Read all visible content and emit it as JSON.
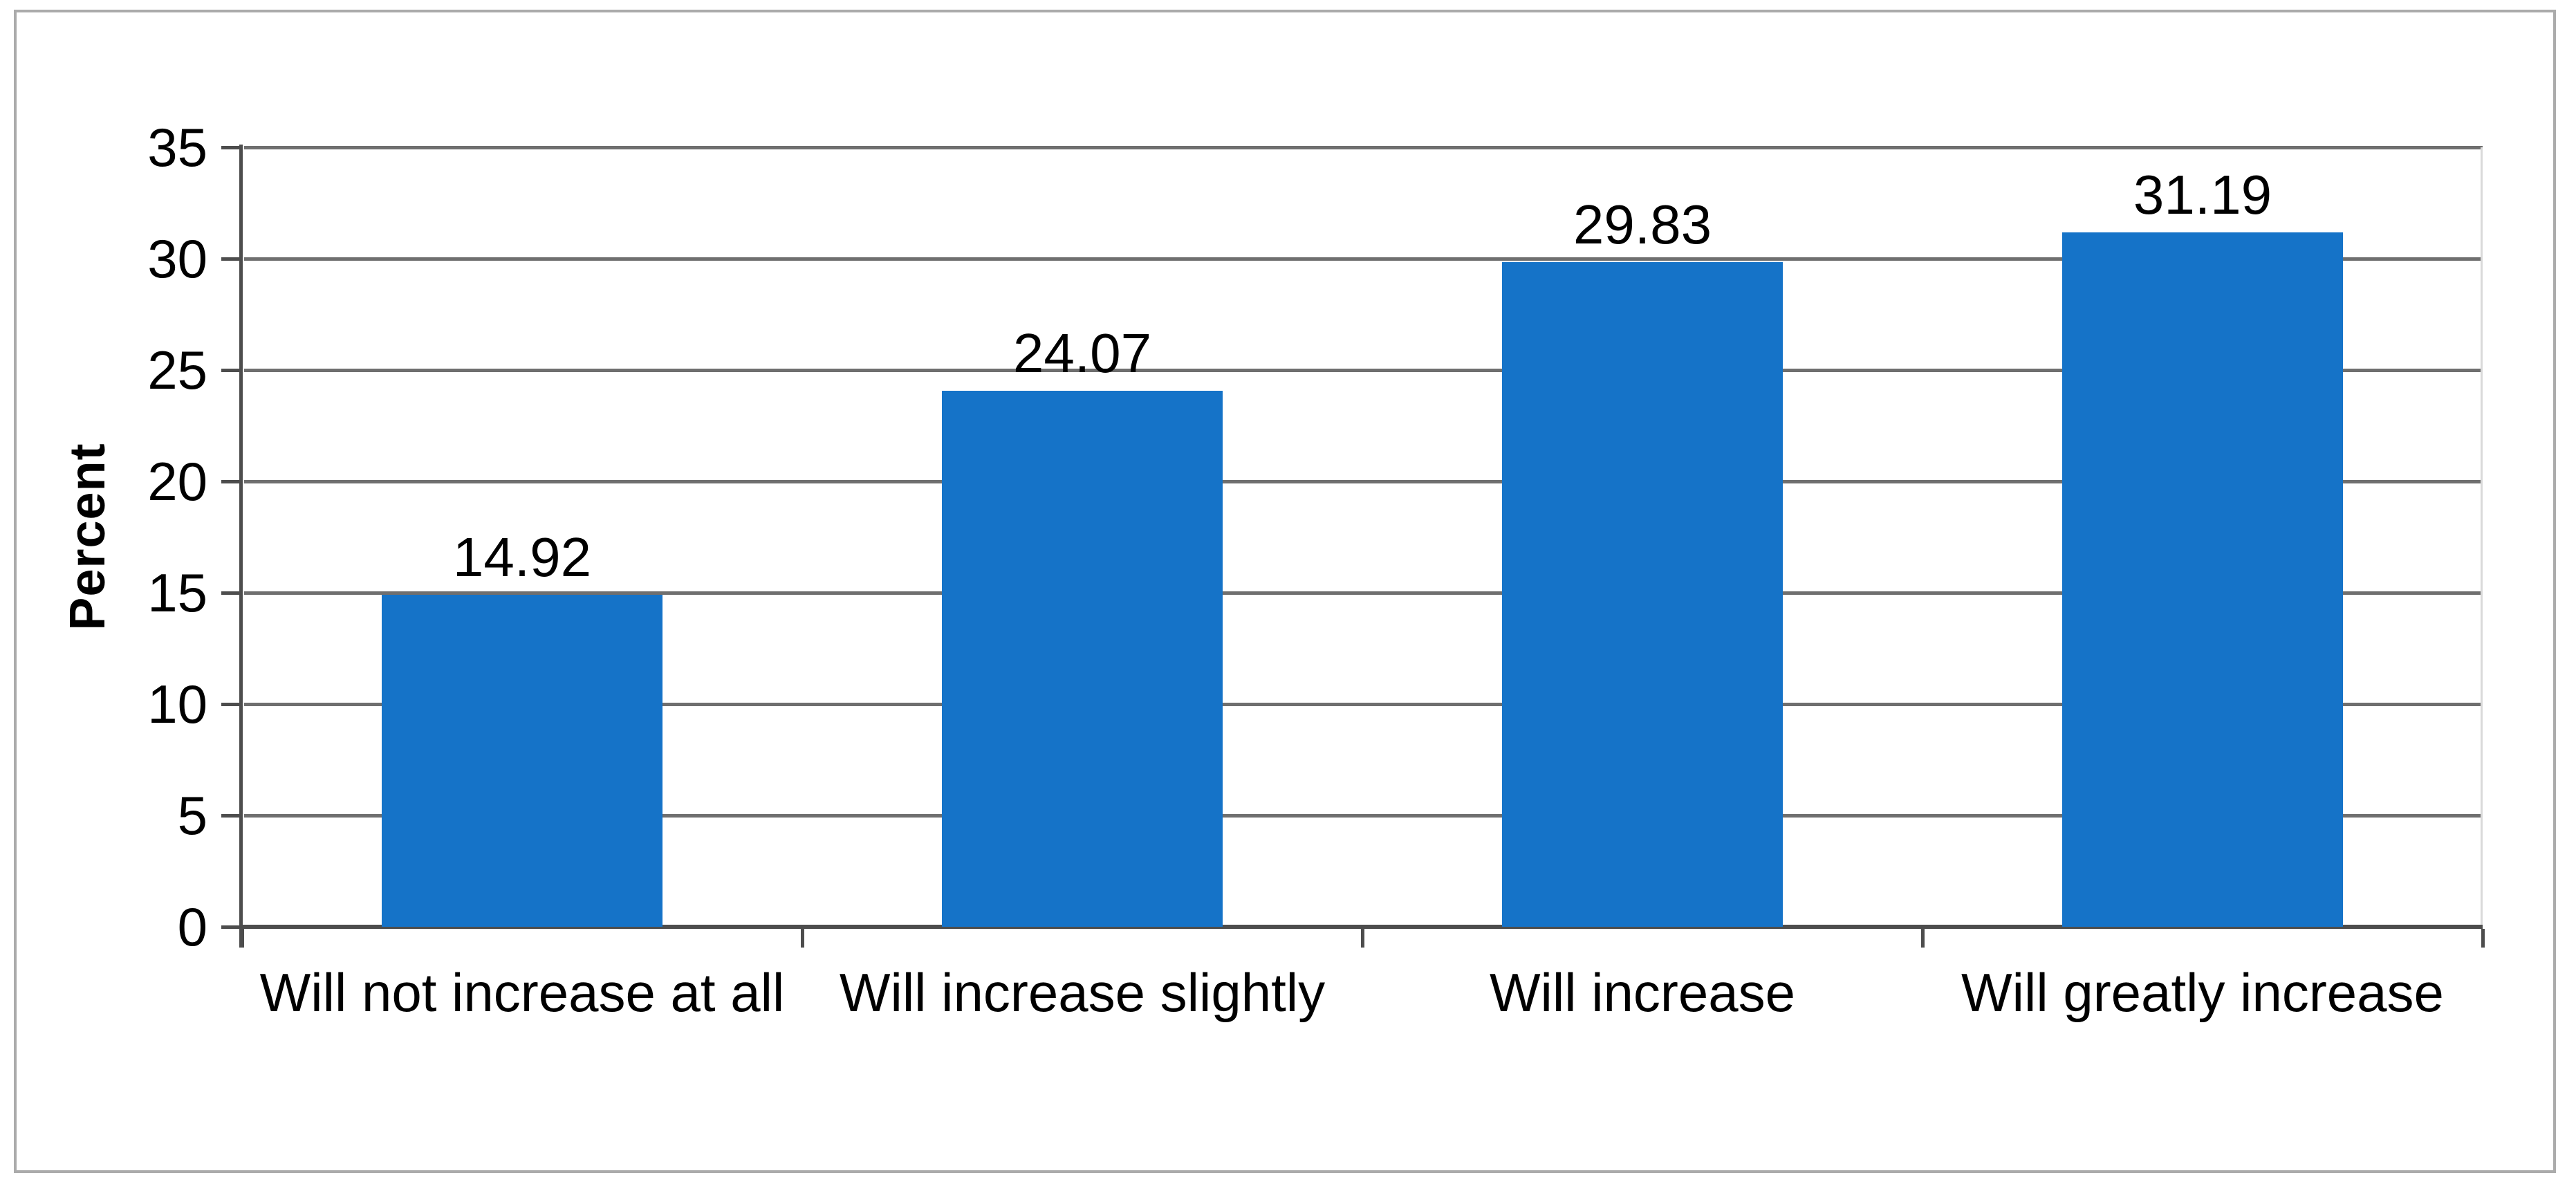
{
  "chart_data": {
    "type": "bar",
    "categories": [
      "Will not increase at all",
      "Will increase slightly",
      "Will increase",
      "Will greatly increase"
    ],
    "values": [
      14.92,
      24.07,
      29.83,
      31.19
    ],
    "value_labels": [
      "14.92",
      "24.07",
      "29.83",
      "31.19"
    ],
    "title": "",
    "xlabel": "",
    "ylabel": "Percent",
    "yticks": [
      0,
      5,
      10,
      15,
      20,
      25,
      30,
      35
    ],
    "ylim": [
      0,
      35
    ],
    "legend": "none",
    "grid": "horizontal",
    "colors": {
      "bar": "#1573c8",
      "gridline": "#6f6f6f",
      "axis": "#4d4d4d",
      "plot_right_edge": "#d9d9d9",
      "frame_border": "#ababab",
      "text": "#000000",
      "background": "#ffffff"
    }
  }
}
